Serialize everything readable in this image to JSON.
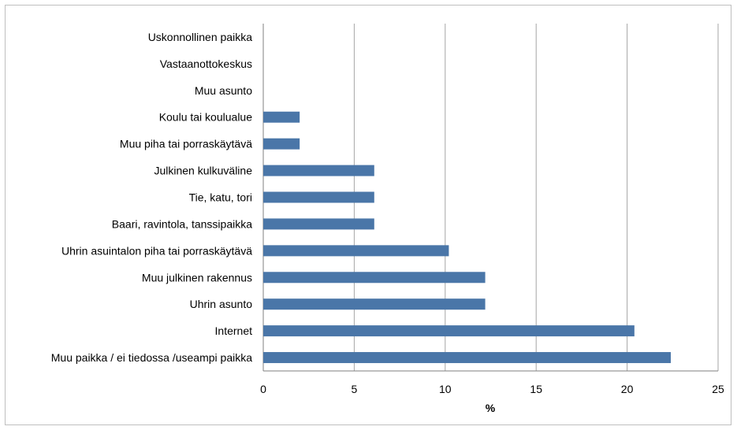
{
  "chart_data": {
    "type": "bar",
    "orientation": "horizontal",
    "title": "",
    "xlabel": "%",
    "ylabel": "",
    "xlim": [
      0,
      25
    ],
    "xticks": [
      0,
      5,
      10,
      15,
      20,
      25
    ],
    "grid": true,
    "bar_color": "#4a76a8",
    "categories": [
      "Uskonnollinen paikka",
      "Vastaanottokeskus",
      "Muu asunto",
      "Koulu tai koulualue",
      "Muu piha tai porraskäytävä",
      "Julkinen kulkuväline",
      "Tie, katu, tori",
      "Baari, ravintola, tanssipaikka",
      "Uhrin asuintalon piha tai porraskäytävä",
      "Muu julkinen rakennus",
      "Uhrin asunto",
      "Internet",
      "Muu paikka / ei tiedossa /useampi paikka"
    ],
    "values": [
      0,
      0,
      0,
      2.0,
      2.0,
      6.1,
      6.1,
      6.1,
      10.2,
      12.2,
      12.2,
      20.4,
      22.4
    ]
  }
}
